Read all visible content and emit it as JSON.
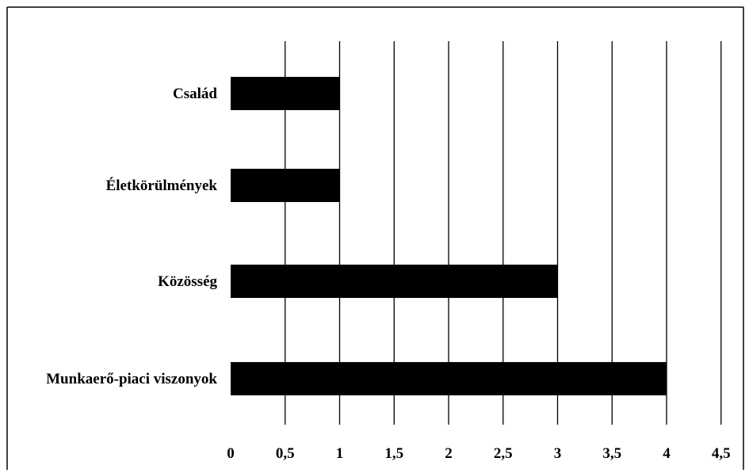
{
  "chart_data": {
    "type": "bar",
    "orientation": "horizontal",
    "categories": [
      "Család",
      "Életkörülmények",
      "Közösség",
      "Munkaerő-piaci viszonyok"
    ],
    "values": [
      1,
      1,
      3,
      4
    ],
    "xticks": [
      "0",
      "0,5",
      "1",
      "1,5",
      "2",
      "2,5",
      "3",
      "3,5",
      "4",
      "4,5"
    ],
    "xlim": [
      0,
      4.5
    ],
    "grid": "vertical",
    "legend": "none",
    "bar_color": "#000000",
    "gridline_color": "#000000",
    "frame_color": "#000000",
    "title": "",
    "xlabel": "",
    "ylabel": ""
  }
}
